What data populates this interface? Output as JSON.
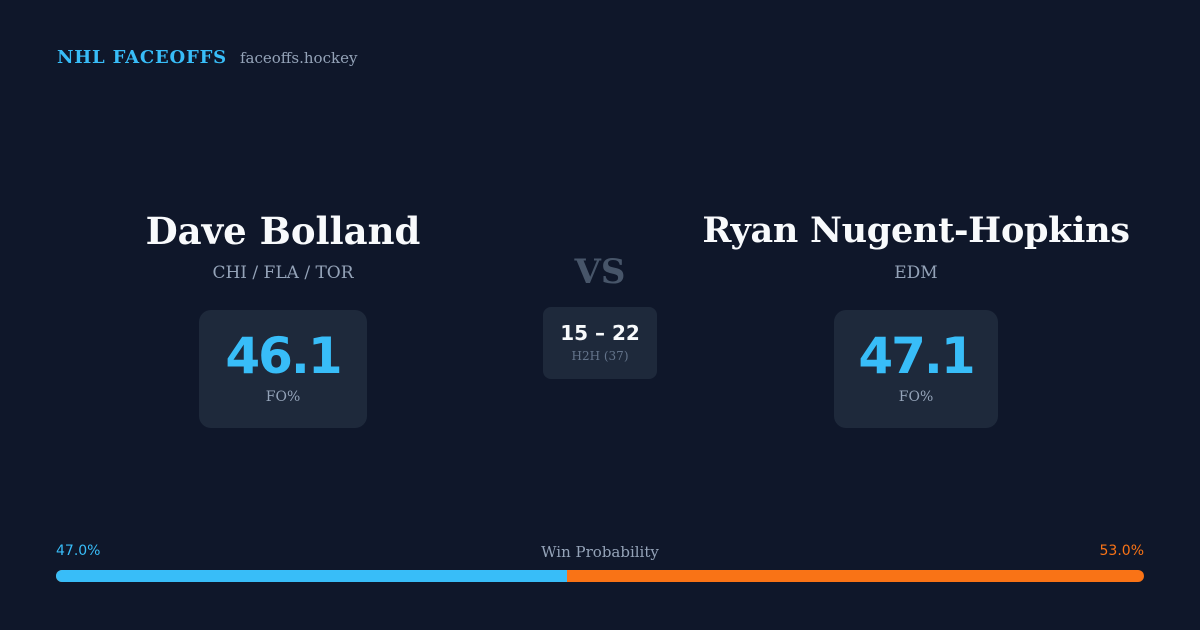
{
  "brand": {
    "name": "NHL FACEOFFS",
    "site": "faceoffs.hockey"
  },
  "players": [
    {
      "name": "Dave Bolland",
      "teams": "CHI / FLA / TOR",
      "fo_pct": "46.1",
      "fo_label": "FO%"
    },
    {
      "name": "Ryan Nugent-Hopkins",
      "teams": "EDM",
      "fo_pct": "47.1",
      "fo_label": "FO%"
    }
  ],
  "matchup": {
    "vs": "VS",
    "h2h_score": "15 – 22",
    "h2h_label": "H2H (37)"
  },
  "win_probability": {
    "title": "Win Probability",
    "left_label": "47.0%",
    "right_label": "53.0%",
    "left_fraction": 0.47,
    "left_color": "#38bdf8",
    "right_color": "#f97316"
  },
  "colors": {
    "background": "#0f172a",
    "card": "#1e293b",
    "accent": "#38bdf8"
  }
}
